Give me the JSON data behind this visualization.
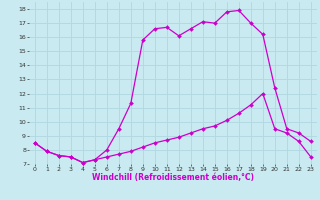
{
  "xlabel": "Windchill (Refroidissement éolien,°C)",
  "background_color": "#c8eaf0",
  "grid_color": "#b0d8e0",
  "line_color": "#cc00cc",
  "xlim": [
    -0.5,
    23.5
  ],
  "ylim": [
    7,
    18.5
  ],
  "xticks": [
    0,
    1,
    2,
    3,
    4,
    5,
    6,
    7,
    8,
    9,
    10,
    11,
    12,
    13,
    14,
    15,
    16,
    17,
    18,
    19,
    20,
    21,
    22,
    23
  ],
  "yticks": [
    7,
    8,
    9,
    10,
    11,
    12,
    13,
    14,
    15,
    16,
    17,
    18
  ],
  "series1_x": [
    0,
    1,
    2,
    3,
    4,
    5,
    6,
    7,
    8,
    9,
    10,
    11,
    12,
    13,
    14,
    15,
    16,
    17,
    18,
    19,
    20,
    21,
    22,
    23
  ],
  "series1_y": [
    8.5,
    7.9,
    7.6,
    7.5,
    7.1,
    7.3,
    8.0,
    9.5,
    11.3,
    15.8,
    16.6,
    16.7,
    16.1,
    16.6,
    17.1,
    17.0,
    17.8,
    17.9,
    17.0,
    16.2,
    12.4,
    9.5,
    9.2,
    8.6
  ],
  "series2_x": [
    0,
    1,
    2,
    3,
    4,
    5,
    6,
    7,
    8,
    9,
    10,
    11,
    12,
    13,
    14,
    15,
    16,
    17,
    18,
    19,
    20,
    21,
    22,
    23
  ],
  "series2_y": [
    8.5,
    7.9,
    7.6,
    7.5,
    7.1,
    7.3,
    7.5,
    7.7,
    7.9,
    8.2,
    8.5,
    8.7,
    8.9,
    9.2,
    9.5,
    9.7,
    10.1,
    10.6,
    11.2,
    12.0,
    9.5,
    9.2,
    8.6,
    7.5
  ],
  "xlabel_fontsize": 5.5,
  "tick_fontsize": 4.5
}
